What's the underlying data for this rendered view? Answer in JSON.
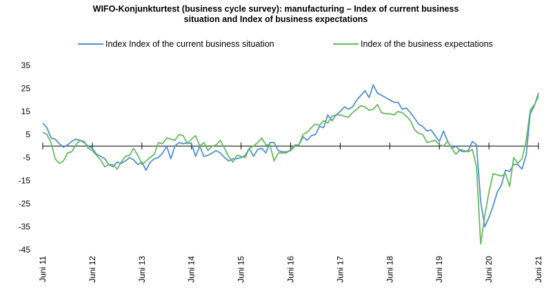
{
  "chart_data": {
    "type": "line",
    "title_line1": "WIFO-Konjunkturtest (business cycle survey): manufacturing – Index of current business",
    "title_line2": "situation and Index of business expectations",
    "xlabel": "",
    "ylabel": "",
    "ylim": [
      -45,
      35
    ],
    "yticks": [
      -45,
      -35,
      -25,
      -15,
      -5,
      5,
      15,
      25,
      35
    ],
    "xticks": [
      "Juni 11",
      "Juni 12",
      "Juni 13",
      "Juni 14",
      "Juni 15",
      "Juni 16",
      "Juni 17",
      "Juni 18",
      "Juni 19",
      "Juni 20",
      "Juni 21"
    ],
    "x_start": "2011-06",
    "x_end": "2021-06",
    "grid": false,
    "legend_position": "top",
    "series": [
      {
        "name": "Index Index of the current business situation",
        "color": "#4f8fcf",
        "values": [
          10,
          8,
          3.5,
          3,
          1,
          -0.5,
          0.5,
          2,
          3,
          2.5,
          1.5,
          0,
          -1,
          -3.5,
          -4.5,
          -5.5,
          -8,
          -9,
          -7,
          -7.5,
          -6.5,
          -5,
          -6,
          -8,
          -7,
          -10.5,
          -7,
          -5.5,
          -5,
          -3,
          0,
          -5.5,
          0,
          1.5,
          1,
          1.5,
          1,
          -4.5,
          0,
          -4.5,
          -4,
          -3,
          -2,
          -3,
          -5,
          -6.5,
          -5.5,
          -5.5,
          -5,
          -4,
          -1,
          -4.5,
          -1.5,
          -1,
          -3,
          1.5,
          1.5,
          -2,
          -2.5,
          -2.5,
          -2,
          0,
          0.5,
          4,
          2.5,
          4.5,
          5,
          8.5,
          8,
          13.5,
          11,
          13.5,
          15,
          17,
          16,
          17,
          20,
          22,
          24,
          21,
          26.5,
          23,
          22,
          21,
          20,
          19,
          19,
          16,
          16.5,
          14.5,
          12,
          9.5,
          8.5,
          6.5,
          7,
          4.5,
          2,
          6.5,
          2,
          -1,
          0,
          -2,
          -2.5,
          -2,
          2,
          0.5,
          -24,
          -35,
          -31,
          -26,
          -20,
          -17,
          -10.5,
          -11,
          -8,
          -8,
          -10,
          -4,
          14,
          17.5,
          23
        ]
      },
      {
        "name": "Index of the business expectations",
        "color": "#66b85e",
        "values": [
          6,
          5,
          1.5,
          -5.5,
          -7.5,
          -6.5,
          -3,
          -2.5,
          0.5,
          2.5,
          2,
          -1,
          -2,
          -4,
          -6,
          -9,
          -8,
          -8,
          -10,
          -7,
          -4.5,
          -4,
          -1,
          -4,
          -8,
          -6.5,
          -5,
          -3.5,
          1.5,
          1,
          3.5,
          3,
          2.5,
          5,
          4.5,
          1,
          3,
          4.5,
          0,
          1.5,
          -2,
          0,
          0.5,
          2.5,
          -1,
          -4.5,
          -7,
          -4,
          -4.5,
          -5,
          -1,
          0,
          1.5,
          3.5,
          0.5,
          0.5,
          -6.5,
          -3,
          -3,
          -3,
          -1.5,
          0.5,
          0.5,
          5,
          6,
          8,
          9.5,
          9,
          11,
          10,
          13,
          13.5,
          13.5,
          13,
          12.5,
          14.5,
          16,
          17.5,
          17,
          15.5,
          16,
          18,
          14.5,
          14,
          14,
          13.5,
          15,
          14.5,
          13,
          11,
          7,
          5.5,
          5,
          1.5,
          2,
          2.5,
          0.5,
          0,
          2,
          -1,
          -3.5,
          -1.5,
          -2,
          -2.5,
          -1.5,
          -9,
          -42.5,
          -30,
          -20,
          -12,
          -12.5,
          -13,
          -12,
          -17.5,
          -5,
          -7.5,
          -5.5,
          2,
          15.5,
          18,
          21.5
        ]
      }
    ]
  }
}
